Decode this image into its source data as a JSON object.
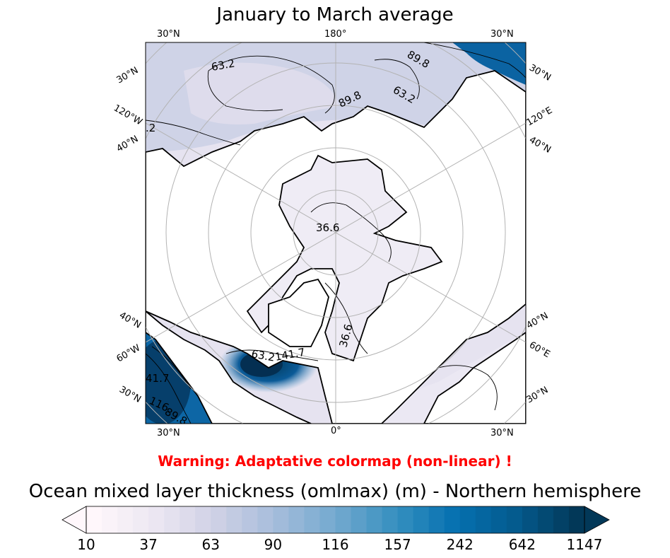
{
  "title": "January to March average",
  "map": {
    "labels": {
      "top_left": "30°N",
      "top_center": "180°",
      "top_right": "30°N",
      "left_1": "30°N",
      "left_2": "120°W",
      "left_3": "40°N",
      "left_4": "40°N",
      "left_5": "60°W",
      "left_6": "30°N",
      "right_1": "30°N",
      "right_2": "120°E",
      "right_3": "40°N",
      "right_4": "40°N",
      "right_5": "60°E",
      "right_6": "30°N",
      "bottom_left": "30°N",
      "bottom_center": "0°",
      "bottom_right": "30°N"
    },
    "contour_labels": [
      "63.2",
      "89.8",
      "63.2",
      "89.8",
      ".2",
      "36.6",
      "36.6",
      "63.2",
      "41.7",
      "141.7",
      "116.",
      "89.8"
    ],
    "colors": {
      "land": "#ffffff",
      "ocean_light": "#eae6f1",
      "ocean_mid": "#c9cde4",
      "ocean_deep": "#0a5a97",
      "grid": "#b3b3b3"
    }
  },
  "warning": "Warning: Adaptative colormap (non-linear) !",
  "colorbar": {
    "title": "Ocean mixed layer thickness (omlmax) (m) - Northern hemisphere",
    "ticks": [
      "10",
      "37",
      "63",
      "90",
      "116",
      "157",
      "242",
      "642",
      "1147"
    ],
    "start_color": "#fff7fb",
    "end_color": "#023858"
  }
}
